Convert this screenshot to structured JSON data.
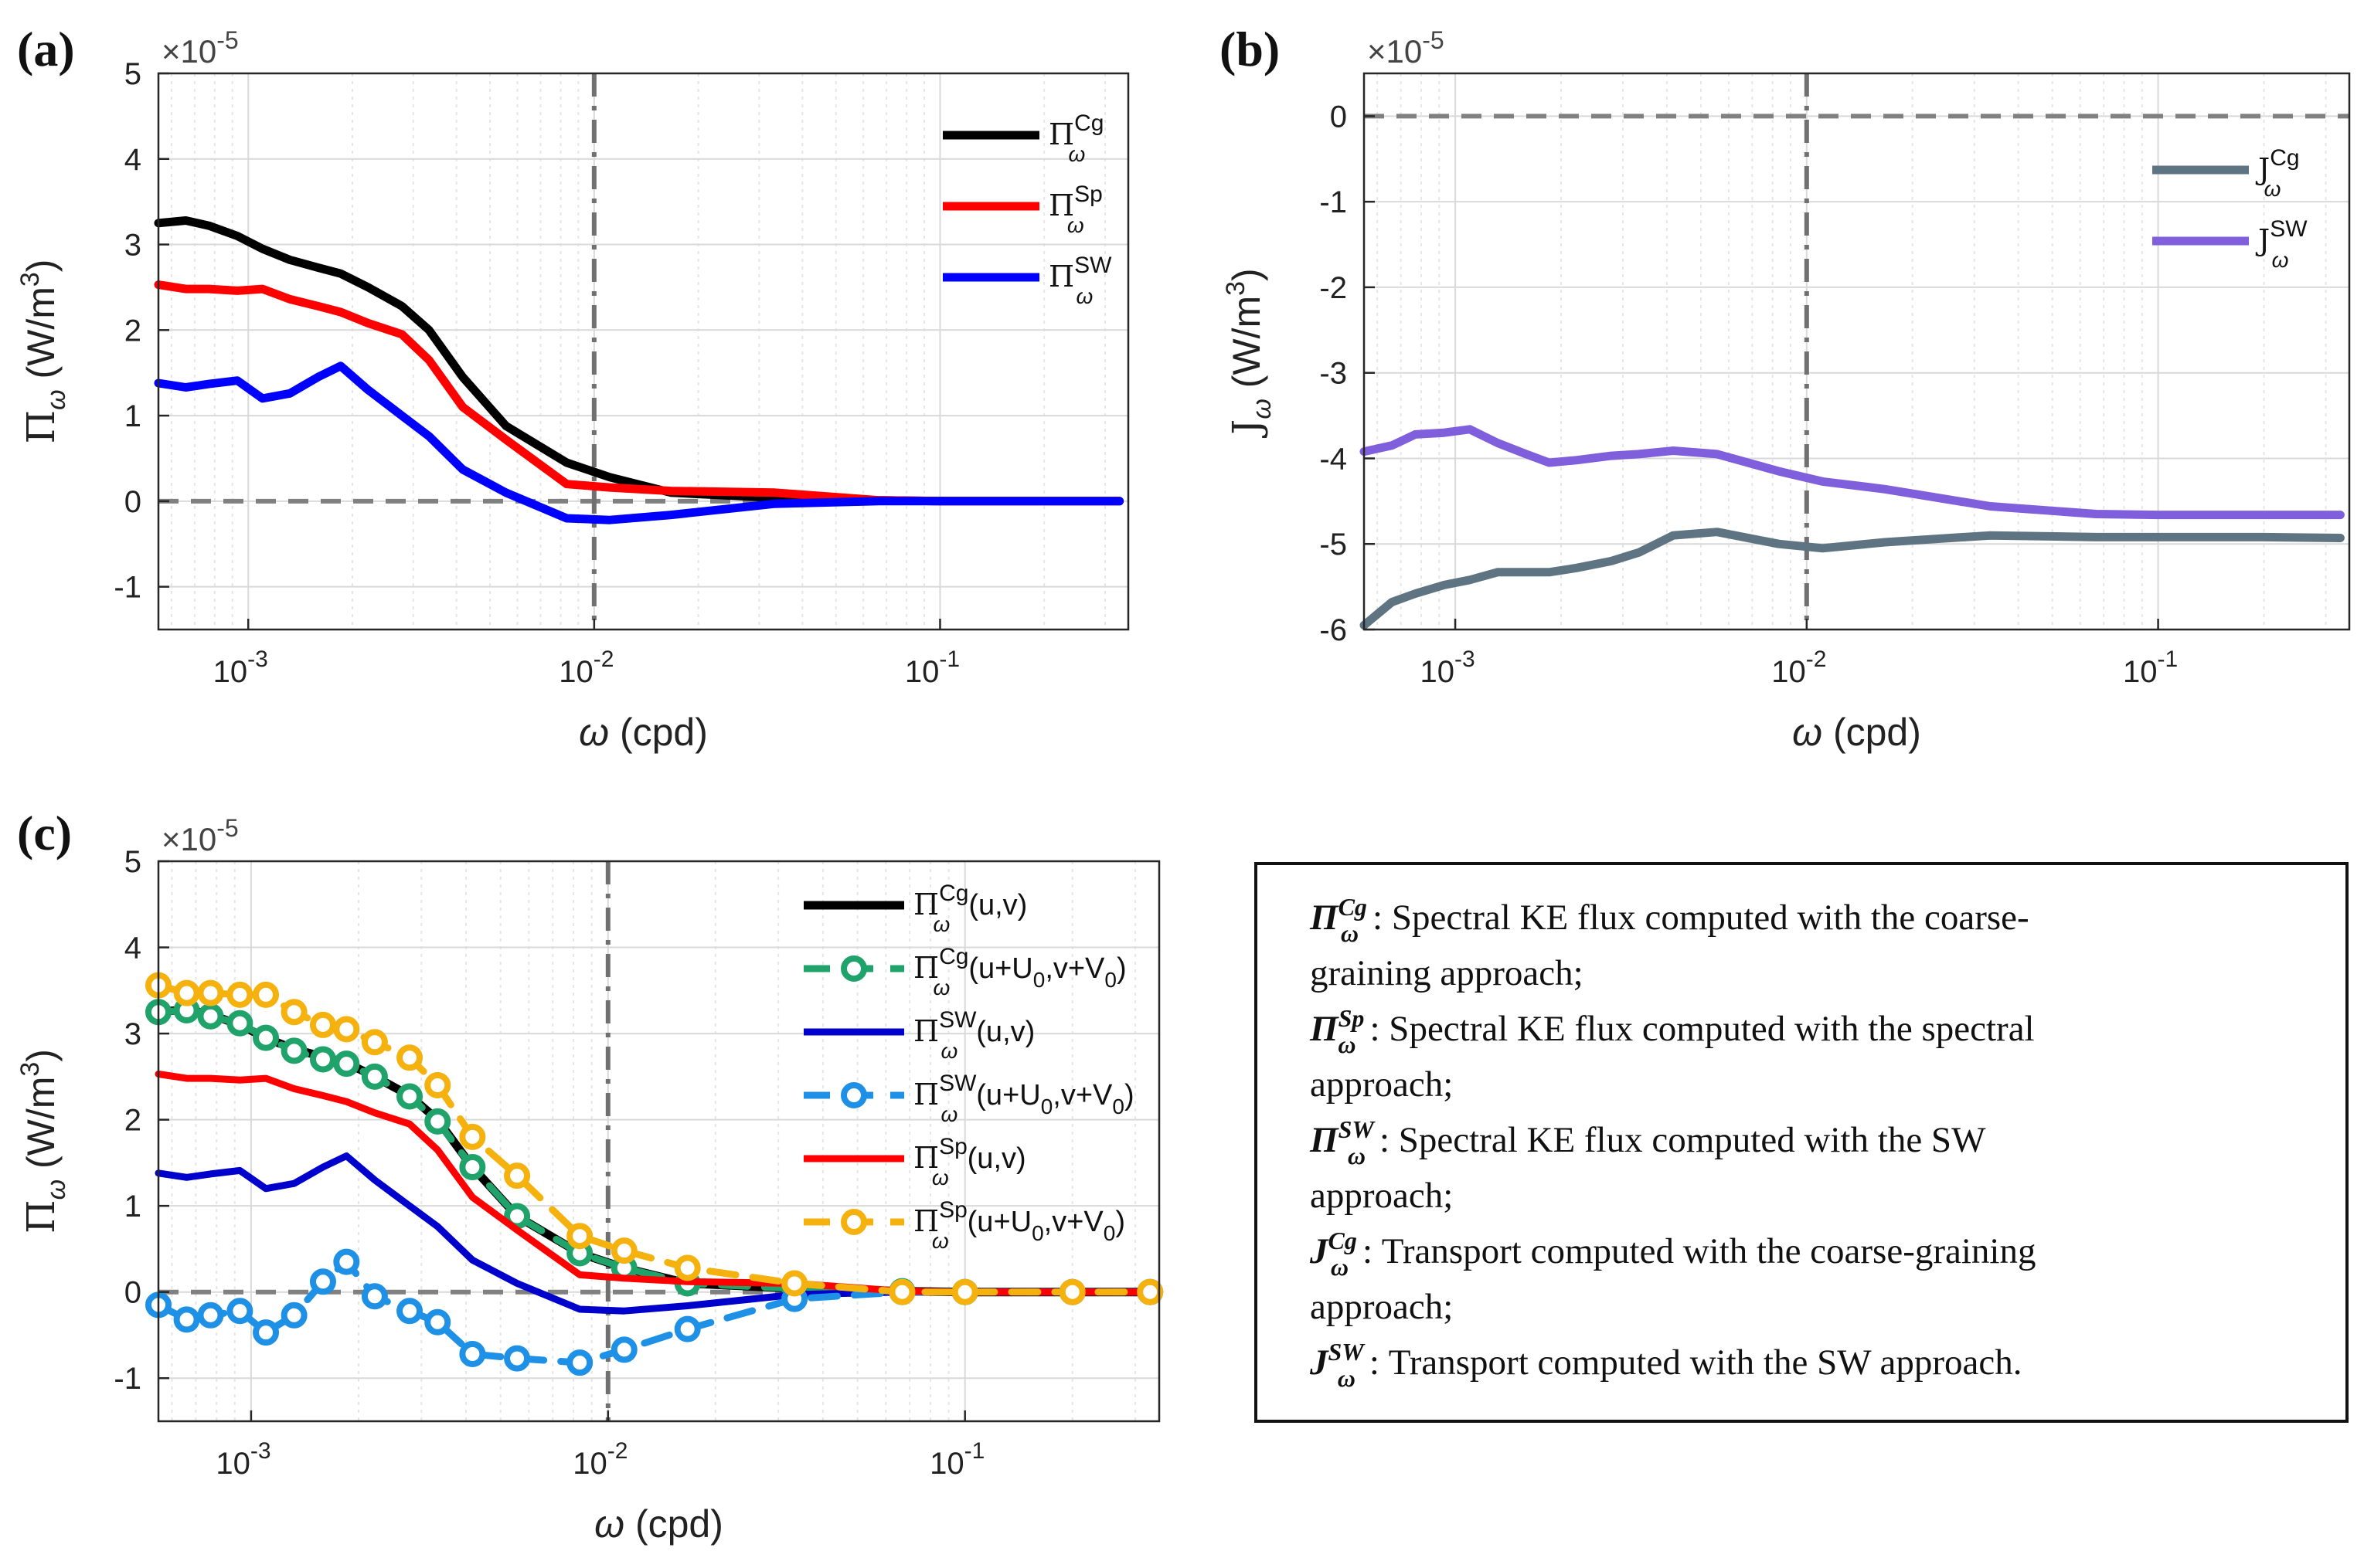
{
  "chart_data": [
    {
      "id": "a",
      "type": "line",
      "panel_label": "(a)",
      "multiplier": "×10",
      "multiplier_exp": "-5",
      "xscale": "log",
      "xlim": [
        0.00055,
        0.35
      ],
      "ylim": [
        -1.5,
        5
      ],
      "yticks": [
        "-1",
        "0",
        "1",
        "2",
        "3",
        "4",
        "5"
      ],
      "xticks": [
        {
          "base": "10",
          "exp": "-3"
        },
        {
          "base": "10",
          "exp": "-2"
        },
        {
          "base": "10",
          "exp": "-1"
        }
      ],
      "xlabel": {
        "sym": "ω",
        "text": " (cpd)"
      },
      "ylabel": {
        "sym": "Π",
        "sub": "ω",
        "text": " (W/m",
        "sup": "3",
        "close": ")"
      },
      "hline": 0,
      "vline": 0.01,
      "legend": "top-right",
      "x": [
        0.00055,
        0.00066,
        0.00077,
        0.00093,
        0.0011,
        0.00132,
        0.00159,
        0.00185,
        0.00222,
        0.00278,
        0.00333,
        0.00417,
        0.00556,
        0.00833,
        0.0111,
        0.0167,
        0.0333,
        0.0667,
        0.1,
        0.2,
        0.33
      ],
      "series": [
        {
          "name": "Cg",
          "sym": "Π",
          "sub": "ω",
          "sup": "Cg",
          "color": "#000000",
          "width": 11,
          "values": [
            3.25,
            3.28,
            3.22,
            3.1,
            2.95,
            2.82,
            2.73,
            2.66,
            2.5,
            2.28,
            2.0,
            1.45,
            0.88,
            0.45,
            0.28,
            0.1,
            0.04,
            0.01,
            0.0,
            0.0,
            0.0
          ]
        },
        {
          "name": "Sp",
          "sym": "Π",
          "sub": "ω",
          "sup": "Sp",
          "color": "#ff0000",
          "width": 11,
          "values": [
            2.53,
            2.48,
            2.48,
            2.46,
            2.48,
            2.36,
            2.28,
            2.21,
            2.08,
            1.95,
            1.65,
            1.1,
            0.72,
            0.2,
            0.16,
            0.12,
            0.1,
            0.01,
            0.0,
            0.0,
            0.0
          ]
        },
        {
          "name": "SW",
          "sym": "Π",
          "sub": "ω",
          "sup": "SW",
          "color": "#0000ff",
          "width": 11,
          "values": [
            1.38,
            1.33,
            1.37,
            1.41,
            1.2,
            1.26,
            1.45,
            1.58,
            1.3,
            1.0,
            0.76,
            0.37,
            0.1,
            -0.2,
            -0.22,
            -0.16,
            -0.03,
            0.0,
            0.0,
            0.0,
            0.0
          ]
        }
      ]
    },
    {
      "id": "b",
      "type": "line",
      "panel_label": "(b)",
      "multiplier": "×10",
      "multiplier_exp": "-5",
      "xscale": "log",
      "xlim": [
        0.00055,
        0.35
      ],
      "ylim": [
        -6,
        0.5
      ],
      "yticks": [
        "-6",
        "-5",
        "-4",
        "-3",
        "-2",
        "-1",
        "0"
      ],
      "xticks": [
        {
          "base": "10",
          "exp": "-3"
        },
        {
          "base": "10",
          "exp": "-2"
        },
        {
          "base": "10",
          "exp": "-1"
        }
      ],
      "xlabel": {
        "sym": "ω",
        "text": " (cpd)"
      },
      "ylabel": {
        "sym": "J",
        "sub": "ω",
        "text": " (W/m",
        "sup": "3",
        "close": ")"
      },
      "hline": 0,
      "vline": 0.01,
      "legend": "top-right",
      "x": [
        0.00055,
        0.00066,
        0.00077,
        0.00093,
        0.0011,
        0.00132,
        0.00159,
        0.00185,
        0.00222,
        0.00278,
        0.00333,
        0.00417,
        0.00556,
        0.00833,
        0.0111,
        0.0167,
        0.0333,
        0.0667,
        0.1,
        0.2,
        0.33
      ],
      "series": [
        {
          "name": "Cg",
          "sym": "J",
          "sub": "ω",
          "sup": "Cg",
          "color": "#5f7482",
          "width": 11,
          "values": [
            -5.95,
            -5.68,
            -5.58,
            -5.48,
            -5.42,
            -5.33,
            -5.33,
            -5.33,
            -5.28,
            -5.2,
            -5.1,
            -4.9,
            -4.86,
            -5.0,
            -5.05,
            -4.98,
            -4.9,
            -4.92,
            -4.92,
            -4.92,
            -4.93
          ]
        },
        {
          "name": "SW",
          "sym": "J",
          "sub": "ω",
          "sup": "SW",
          "color": "#7f5fdc",
          "width": 11,
          "values": [
            -3.92,
            -3.85,
            -3.72,
            -3.7,
            -3.66,
            -3.82,
            -3.95,
            -4.05,
            -4.02,
            -3.97,
            -3.95,
            -3.91,
            -3.95,
            -4.15,
            -4.27,
            -4.36,
            -4.56,
            -4.65,
            -4.66,
            -4.66,
            -4.66
          ]
        }
      ]
    },
    {
      "id": "c",
      "type": "line",
      "panel_label": "(c)",
      "multiplier": "×10",
      "multiplier_exp": "-5",
      "xscale": "log",
      "xlim": [
        0.00055,
        0.35
      ],
      "ylim": [
        -1.5,
        5
      ],
      "yticks": [
        "-1",
        "0",
        "1",
        "2",
        "3",
        "4",
        "5"
      ],
      "xticks": [
        {
          "base": "10",
          "exp": "-3"
        },
        {
          "base": "10",
          "exp": "-2"
        },
        {
          "base": "10",
          "exp": "-1"
        }
      ],
      "xlabel": {
        "sym": "ω",
        "text": " (cpd)"
      },
      "ylabel": {
        "sym": "Π",
        "sub": "ω",
        "text": " (W/m",
        "sup": "3",
        "close": ")"
      },
      "hline": 0,
      "vline": 0.01,
      "legend": "top-right",
      "x": [
        0.00055,
        0.00066,
        0.00077,
        0.00093,
        0.0011,
        0.00132,
        0.00159,
        0.00185,
        0.00222,
        0.00278,
        0.00333,
        0.00417,
        0.00556,
        0.00833,
        0.0111,
        0.0167,
        0.0333,
        0.0667,
        0.1,
        0.2,
        0.33
      ],
      "series": [
        {
          "name": "Cg(u,v)",
          "sym": "Π",
          "sub": "ω",
          "sup": "Cg",
          "arg": "(u,v)",
          "color": "#000000",
          "width": 11,
          "dashed": false,
          "markers": false,
          "values": [
            3.25,
            3.28,
            3.22,
            3.1,
            2.95,
            2.82,
            2.73,
            2.66,
            2.5,
            2.28,
            2.0,
            1.45,
            0.88,
            0.45,
            0.28,
            0.1,
            0.04,
            0.01,
            0.0,
            0.0,
            0.0
          ]
        },
        {
          "name": "Cg(u+U0,v+V0)",
          "sym": "Π",
          "sub": "ω",
          "sup": "Cg",
          "arg": "(u+U",
          "arg_sub1": "0",
          "arg_mid": ",v+V",
          "arg_sub2": "0",
          "arg_close": ")",
          "color": "#1fa36b",
          "width": 9,
          "dashed": true,
          "markers": true,
          "values": [
            3.25,
            3.27,
            3.2,
            3.12,
            2.95,
            2.8,
            2.7,
            2.65,
            2.5,
            2.27,
            1.98,
            1.45,
            0.88,
            0.45,
            0.28,
            0.1,
            0.04,
            0.01,
            0.0,
            0.0,
            0.0
          ]
        },
        {
          "name": "SW(u,v)",
          "sym": "Π",
          "sub": "ω",
          "sup": "SW",
          "arg": "(u,v)",
          "color": "#0000cc",
          "width": 9,
          "dashed": false,
          "markers": false,
          "values": [
            1.38,
            1.33,
            1.37,
            1.41,
            1.2,
            1.26,
            1.45,
            1.58,
            1.3,
            1.0,
            0.76,
            0.37,
            0.1,
            -0.2,
            -0.22,
            -0.16,
            -0.03,
            0.0,
            0.0,
            0.0,
            0.0
          ]
        },
        {
          "name": "SW(u+U0,v+V0)",
          "sym": "Π",
          "sub": "ω",
          "sup": "SW",
          "arg": "(u+U",
          "arg_sub1": "0",
          "arg_mid": ",v+V",
          "arg_sub2": "0",
          "arg_close": ")",
          "color": "#1e90e6",
          "width": 9,
          "dashed": true,
          "markers": true,
          "values": [
            -0.15,
            -0.32,
            -0.27,
            -0.22,
            -0.47,
            -0.27,
            0.12,
            0.35,
            -0.05,
            -0.22,
            -0.35,
            -0.72,
            -0.77,
            -0.82,
            -0.67,
            -0.43,
            -0.08,
            0.0,
            0.0,
            0.0,
            0.0
          ]
        },
        {
          "name": "Sp(u,v)",
          "sym": "Π",
          "sub": "ω",
          "sup": "Sp",
          "arg": "(u,v)",
          "color": "#ff0000",
          "width": 9,
          "dashed": false,
          "markers": false,
          "values": [
            2.53,
            2.48,
            2.48,
            2.46,
            2.48,
            2.36,
            2.28,
            2.21,
            2.08,
            1.95,
            1.65,
            1.1,
            0.72,
            0.2,
            0.16,
            0.12,
            0.1,
            0.01,
            0.0,
            0.0,
            0.0
          ]
        },
        {
          "name": "Sp(u+U0,v+V0)",
          "sym": "Π",
          "sub": "ω",
          "sup": "Sp",
          "arg": "(u+U",
          "arg_sub1": "0",
          "arg_mid": ",v+V",
          "arg_sub2": "0",
          "arg_close": ")",
          "color": "#f5b20f",
          "width": 9,
          "dashed": true,
          "markers": true,
          "values": [
            3.56,
            3.47,
            3.47,
            3.45,
            3.45,
            3.25,
            3.1,
            3.05,
            2.9,
            2.72,
            2.4,
            1.8,
            1.35,
            0.65,
            0.48,
            0.28,
            0.1,
            0.0,
            0.0,
            0.0,
            0.0
          ]
        }
      ]
    }
  ],
  "description_box": {
    "lines": [
      {
        "sym": "Π",
        "sub": "ω",
        "sup": "Cg",
        "text": ": Spectral KE flux computed with the coarse-"
      },
      {
        "text": "graining approach;"
      },
      {
        "sym": "Π",
        "sub": "ω",
        "sup": "Sp",
        "text": ": Spectral KE flux computed with the spectral"
      },
      {
        "text": "approach;"
      },
      {
        "sym": "Π",
        "sub": "ω",
        "sup": "SW",
        "text": ": Spectral KE flux computed with the SW"
      },
      {
        "text": "approach;"
      },
      {
        "sym": "J",
        "sub": "ω",
        "sup": "Cg",
        "text": ": Transport computed with the coarse-graining"
      },
      {
        "text": "approach;"
      },
      {
        "sym": "J",
        "sub": "ω",
        "sup": "SW",
        "text": ": Transport computed with the SW approach."
      }
    ]
  }
}
